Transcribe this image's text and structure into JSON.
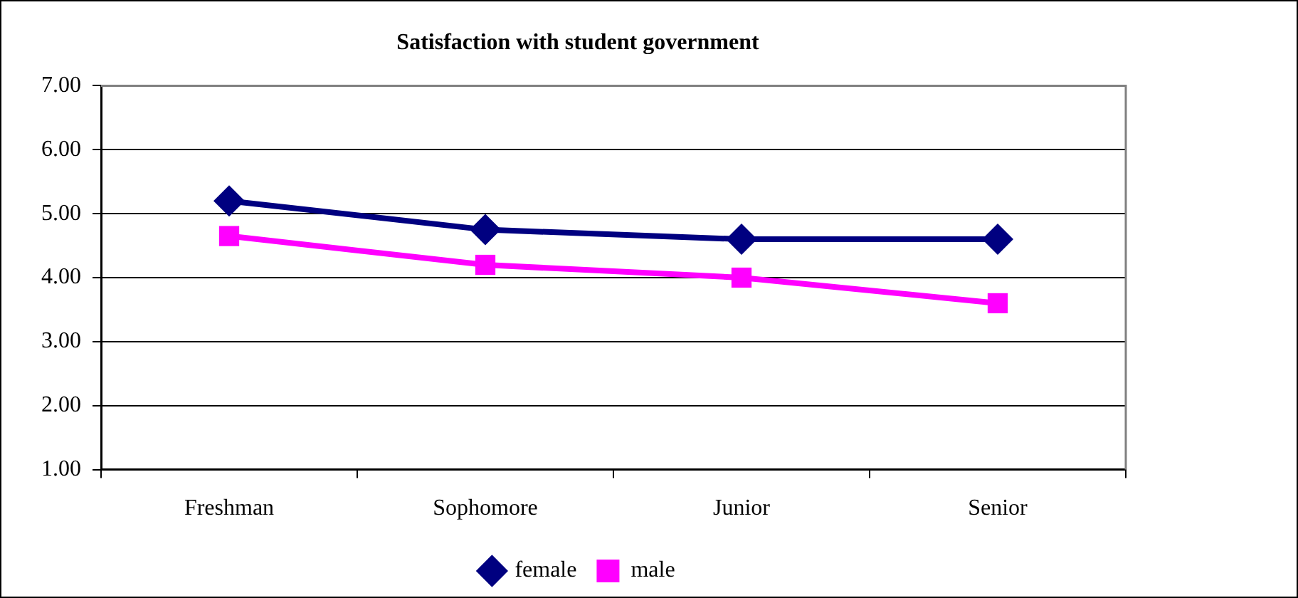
{
  "chart_data": {
    "type": "line",
    "title": "Satisfaction with student government",
    "categories": [
      "Freshman",
      "Sophomore",
      "Junior",
      "Senior"
    ],
    "series": [
      {
        "name": "female",
        "color": "#000080",
        "marker": "diamond",
        "values": [
          5.2,
          4.75,
          4.6,
          4.6
        ]
      },
      {
        "name": "male",
        "color": "#ff00ff",
        "marker": "square",
        "values": [
          4.65,
          4.2,
          4.0,
          3.6
        ]
      }
    ],
    "ylim": [
      1,
      7
    ],
    "yticks": [
      {
        "value": 1,
        "label": "1.00"
      },
      {
        "value": 2,
        "label": "2.00"
      },
      {
        "value": 3,
        "label": "3.00"
      },
      {
        "value": 4,
        "label": "4.00"
      },
      {
        "value": 5,
        "label": "5.00"
      },
      {
        "value": 6,
        "label": "6.00"
      },
      {
        "value": 7,
        "label": "7.00"
      }
    ],
    "grid": "y",
    "legend": "bottom",
    "line_style": "solid"
  }
}
